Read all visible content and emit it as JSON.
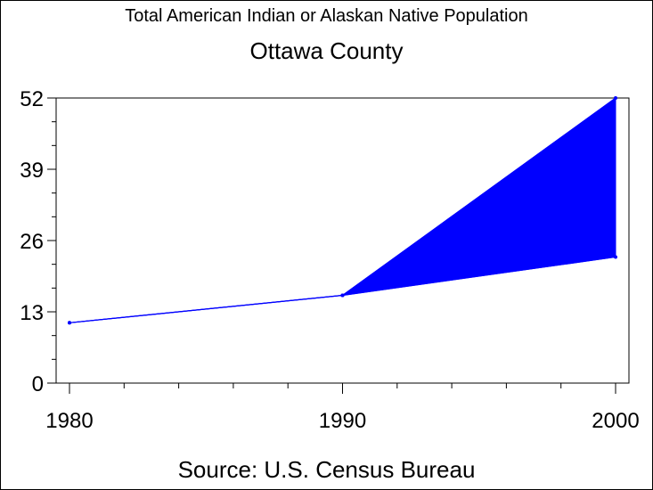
{
  "title": "Total American Indian or Alaskan Native Population",
  "subtitle": "Ottawa County",
  "footer": "Source: U.S. Census Bureau",
  "colors": {
    "series": "#0000ff",
    "axis": "#000000"
  },
  "chart_data": {
    "type": "area",
    "x": [
      1980,
      1990,
      2000
    ],
    "xlim": [
      1980,
      2000
    ],
    "ylim": [
      0,
      52
    ],
    "xticks": [
      1980,
      1990,
      2000
    ],
    "yticks": [
      0,
      13,
      26,
      39,
      52
    ],
    "series": [
      {
        "values": [
          11,
          16,
          52
        ]
      },
      {
        "values": [
          11,
          16,
          23
        ]
      }
    ],
    "fill_between_series": true,
    "grid": false,
    "legend": false
  }
}
